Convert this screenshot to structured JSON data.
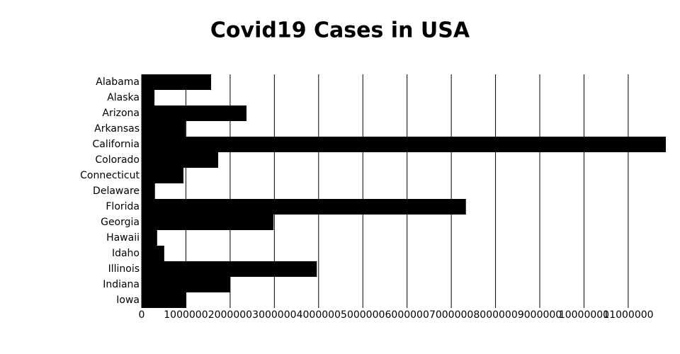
{
  "chart_data": {
    "type": "bar",
    "orientation": "horizontal",
    "title": "Covid19 Cases in USA",
    "categories": [
      "Alabama",
      "Alaska",
      "Arizona",
      "Arkansas",
      "California",
      "Colorado",
      "Connecticut",
      "Delaware",
      "Florida",
      "Georgia",
      "Hawaii",
      "Idaho",
      "Illinois",
      "Indiana",
      "Iowa"
    ],
    "values": [
      1570000,
      290000,
      2370000,
      990000,
      11850000,
      1730000,
      945000,
      300000,
      7330000,
      2980000,
      350000,
      510000,
      3960000,
      2000000,
      1010000
    ],
    "color": "#000000",
    "xlim": [
      0,
      11850000
    ],
    "xticks": [
      0,
      1000000,
      2000000,
      3000000,
      4000000,
      5000000,
      6000000,
      7000000,
      8000000,
      9000000,
      10000000,
      11000000
    ],
    "grid": true
  }
}
